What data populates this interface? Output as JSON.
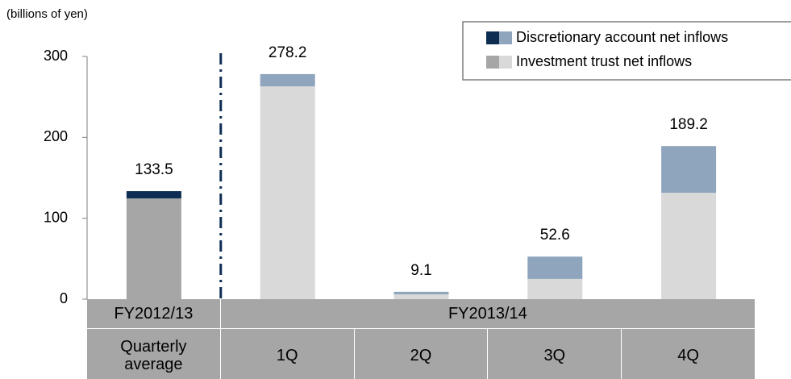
{
  "chart_data": {
    "type": "stacked_bar",
    "y_label": "(billions of yen)",
    "categories": [
      "Quarterly average",
      "1Q",
      "2Q",
      "3Q",
      "4Q"
    ],
    "groups": [
      {
        "label": "FY2012/13",
        "span": 1
      },
      {
        "label": "FY2013/14",
        "span": 4
      }
    ],
    "series": [
      {
        "name": "Investment trust net inflows",
        "colors": [
          "#a6a6a6",
          "#d9d9d9",
          "#d9d9d9",
          "#d9d9d9",
          "#d9d9d9"
        ],
        "values": [
          124.5,
          263.0,
          6.0,
          25.0,
          131.5
        ]
      },
      {
        "name": "Discretionary account net inflows",
        "colors": [
          "#0d2d52",
          "#8fa5bd",
          "#8fa5bd",
          "#8fa5bd",
          "#8fa5bd"
        ],
        "values": [
          9.0,
          15.2,
          3.1,
          27.6,
          57.7
        ]
      }
    ],
    "totals": [
      133.5,
      278.2,
      9.1,
      52.6,
      189.2
    ],
    "ylim": [
      0,
      300
    ],
    "yticks": [
      0,
      100,
      200,
      300
    ],
    "legend": "top-right"
  }
}
